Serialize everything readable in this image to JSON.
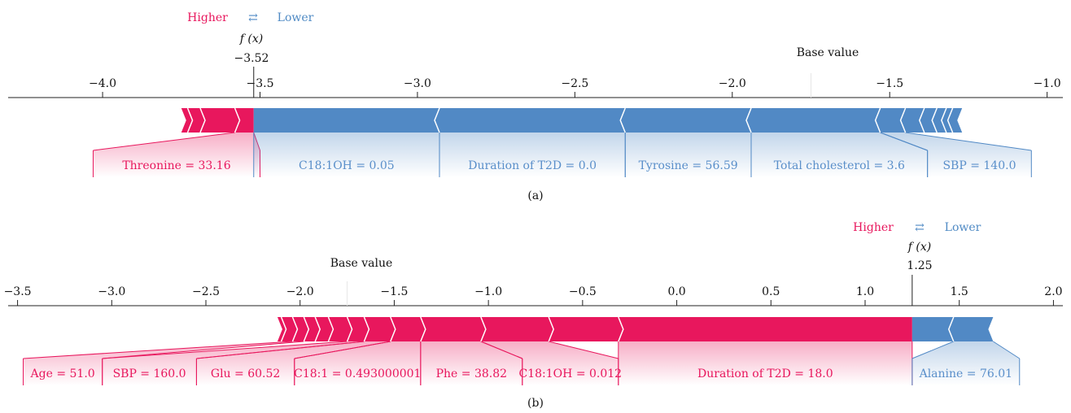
{
  "colors": {
    "positive": "#e8175d",
    "negative": "#5189c5",
    "positive_text": "#e8175d",
    "negative_text": "#5a8fca"
  },
  "chart_data": [
    {
      "type": "force",
      "caption": "(a)",
      "legend": {
        "higher": "Higher",
        "arrow": "⇄",
        "lower": "Lower"
      },
      "fx_label": "f (x)",
      "fx_value": -3.52,
      "fx_text": "−3.52",
      "base_label": "Base value",
      "base_value": -1.75,
      "xlim": [
        -4.3,
        -0.95
      ],
      "ticks": [
        -4.0,
        -3.5,
        -3.0,
        -2.5,
        -2.0,
        -1.5,
        -1.0
      ],
      "tick_labels": [
        "−4.0",
        "−3.5",
        "−3.0",
        "−2.5",
        "−2.0",
        "−1.5",
        "−1.0"
      ],
      "bar_range": [
        -3.75,
        -1.27
      ],
      "pos_chevrons": [
        -3.73,
        -3.69,
        -3.58
      ],
      "neg_chevrons": [
        -2.93,
        -2.34,
        -1.94,
        -1.53,
        -1.45,
        -1.39,
        -1.35,
        -1.32,
        -1.3
      ],
      "labels": [
        {
          "text": "Threonine = 33.16",
          "sign": "pos",
          "bar_from": -3.58,
          "bar_to": -3.52,
          "lab_from": -4.03,
          "lab_to": -3.5
        },
        {
          "text": "C18:1OH = 0.05",
          "sign": "neg",
          "bar_from": -3.52,
          "bar_to": -2.93,
          "lab_from": -3.52,
          "lab_to": -2.93
        },
        {
          "text": "Duration of T2D = 0.0",
          "sign": "neg",
          "bar_from": -2.93,
          "bar_to": -2.34,
          "lab_from": -2.93,
          "lab_to": -2.34
        },
        {
          "text": "Tyrosine = 56.59",
          "sign": "neg",
          "bar_from": -2.34,
          "bar_to": -1.94,
          "lab_from": -2.34,
          "lab_to": -1.94
        },
        {
          "text": "Total cholesterol = 3.6",
          "sign": "neg",
          "bar_from": -1.94,
          "bar_to": -1.53,
          "lab_from": -1.94,
          "lab_to": -1.38
        },
        {
          "text": "SBP = 140.0",
          "sign": "neg",
          "bar_from": -1.53,
          "bar_to": -1.45,
          "lab_from": -1.38,
          "lab_to": -1.05
        }
      ]
    },
    {
      "type": "force",
      "caption": "(b)",
      "legend": {
        "higher": "Higher",
        "arrow": "⇄",
        "lower": "Lower"
      },
      "fx_label": "f (x)",
      "fx_value": 1.25,
      "fx_text": "1.25",
      "base_label": "Base value",
      "base_value": -1.75,
      "xlim": [
        -3.55,
        2.05
      ],
      "ticks": [
        -3.5,
        -3.0,
        -2.5,
        -2.0,
        -1.5,
        -1.0,
        -0.5,
        0.0,
        0.5,
        1.0,
        1.5,
        2.0
      ],
      "tick_labels": [
        "−3.5",
        "−3.0",
        "−2.5",
        "−2.0",
        "−1.5",
        "−1.0",
        "−0.5",
        "0.0",
        "0.5",
        "1.0",
        "1.5",
        "2.0"
      ],
      "bar_range": [
        -2.12,
        1.68
      ],
      "pos_chevrons": [
        -2.1,
        -2.04,
        -1.98,
        -1.92,
        -1.85,
        -1.75,
        -1.66,
        -1.52,
        -1.36,
        -1.04,
        -0.68,
        -0.31
      ],
      "neg_chevrons": [
        1.47
      ],
      "labels": [
        {
          "text": "Age = 51.0",
          "sign": "pos",
          "bar_from": -2.04,
          "bar_to": -1.98,
          "lab_from": -3.47,
          "lab_to": -3.05
        },
        {
          "text": "SBP = 160.0",
          "sign": "pos",
          "bar_from": -1.75,
          "bar_to": -1.66,
          "lab_from": -3.05,
          "lab_to": -2.55
        },
        {
          "text": "Glu = 60.52",
          "sign": "pos",
          "bar_from": -1.66,
          "bar_to": -1.52,
          "lab_from": -2.55,
          "lab_to": -2.03
        },
        {
          "text": "C18:1 = 0.493000001",
          "sign": "pos",
          "bar_from": -1.52,
          "bar_to": -1.36,
          "lab_from": -2.03,
          "lab_to": -1.36
        },
        {
          "text": "Phe = 38.82",
          "sign": "pos",
          "bar_from": -1.36,
          "bar_to": -1.04,
          "lab_from": -1.36,
          "lab_to": -0.82
        },
        {
          "text": "C18:1OH = 0.012",
          "sign": "pos",
          "bar_from": -1.04,
          "bar_to": -0.68,
          "lab_from": -0.82,
          "lab_to": -0.31
        },
        {
          "text": "Duration of T2D = 18.0",
          "sign": "pos",
          "bar_from": -0.31,
          "bar_to": 1.25,
          "lab_from": -0.31,
          "lab_to": 1.25
        },
        {
          "text": "Alanine = 76.01",
          "sign": "neg",
          "bar_from": 1.47,
          "bar_to": 1.68,
          "lab_from": 1.25,
          "lab_to": 1.82
        }
      ]
    }
  ]
}
